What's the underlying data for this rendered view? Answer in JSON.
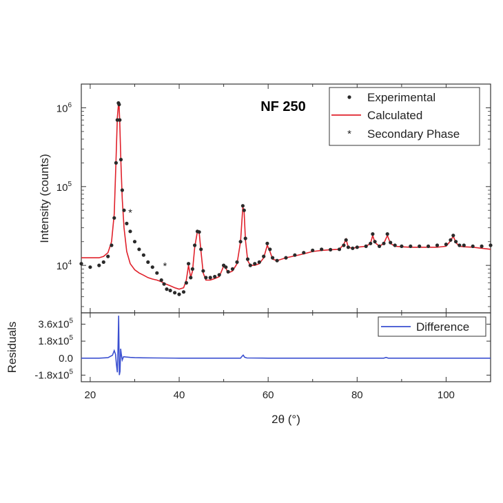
{
  "chart_data": [
    {
      "type": "scatter",
      "title": "",
      "annotation": "NF 250",
      "xlabel": "",
      "ylabel": "Intensity (counts)",
      "xlim": [
        18,
        110
      ],
      "ylim": [
        2500,
        2000000
      ],
      "yscale": "log",
      "y_ticks": [
        {
          "value": 10000,
          "base": "10",
          "exp": "4"
        },
        {
          "value": 100000,
          "base": "10",
          "exp": "5"
        },
        {
          "value": 1000000,
          "base": "10",
          "exp": "6"
        }
      ],
      "legend": {
        "placement": "top-right",
        "entries": [
          "Experimental",
          "Calculated",
          "Secondary Phase"
        ]
      },
      "secondary_phase_markers": [
        {
          "x": 29.0,
          "y": 47000
        },
        {
          "x": 36.8,
          "y": 9800
        }
      ],
      "series": [
        {
          "name": "Experimental",
          "style": "points",
          "color": "#2a2a2a",
          "x": [
            18,
            20,
            22,
            23,
            24,
            24.8,
            25.4,
            25.8,
            26.1,
            26.35,
            26.5,
            26.65,
            26.9,
            27.2,
            27.6,
            28.2,
            29,
            30,
            31,
            32,
            33,
            34,
            35,
            36,
            36.6,
            37.2,
            38,
            39,
            40,
            41,
            41.6,
            42.1,
            42.6,
            43,
            43.5,
            44.1,
            44.5,
            44.9,
            45.4,
            46,
            47,
            48,
            49,
            50,
            50.5,
            51,
            52,
            53,
            53.8,
            54.3,
            54.6,
            54.9,
            55.4,
            56,
            57,
            58,
            59,
            59.8,
            60.4,
            61,
            62,
            64,
            66,
            68,
            70,
            72,
            74,
            76,
            77,
            77.5,
            78,
            79,
            80,
            82,
            83,
            83.5,
            84,
            85,
            86,
            86.8,
            87.5,
            88.5,
            90,
            92,
            94,
            96,
            98,
            100,
            101,
            101.6,
            102.2,
            103,
            104,
            106,
            108,
            110
          ],
          "y": [
            10500,
            9500,
            10000,
            11000,
            13000,
            18000,
            40000,
            200000,
            700000,
            1150000,
            1100000,
            700000,
            220000,
            90000,
            50000,
            34000,
            27000,
            20000,
            16000,
            13500,
            11000,
            9500,
            8000,
            6500,
            5800,
            5000,
            4800,
            4500,
            4300,
            4600,
            6000,
            10500,
            7000,
            9000,
            18000,
            27000,
            26500,
            16000,
            8500,
            7000,
            7000,
            7200,
            7600,
            10000,
            9500,
            8300,
            9000,
            11000,
            20000,
            57000,
            50000,
            22000,
            12000,
            10000,
            10500,
            11000,
            13000,
            19000,
            16000,
            12500,
            11500,
            12500,
            13500,
            14500,
            15500,
            16000,
            15800,
            16000,
            18000,
            21000,
            17000,
            16500,
            17000,
            17500,
            19000,
            25000,
            20000,
            17500,
            19000,
            25000,
            19500,
            18000,
            17500,
            17500,
            17500,
            17500,
            18000,
            18500,
            21000,
            24000,
            20000,
            18000,
            18000,
            17500,
            17500,
            18000
          ]
        },
        {
          "name": "Calculated",
          "style": "line",
          "color": "#e0202a",
          "x": [
            18,
            20,
            22,
            23,
            24,
            24.8,
            25.4,
            25.8,
            26.1,
            26.35,
            26.5,
            26.65,
            26.9,
            27.2,
            27.6,
            28.2,
            29,
            30,
            31,
            32,
            33,
            34,
            35,
            36,
            37,
            38,
            39,
            40,
            41,
            41.6,
            42.1,
            42.6,
            43,
            43.5,
            44.1,
            44.5,
            44.9,
            45.4,
            46,
            47,
            48,
            49,
            50,
            50.5,
            51,
            52,
            53,
            53.8,
            54.3,
            54.6,
            54.9,
            55.4,
            56,
            57,
            58,
            59,
            59.8,
            60.4,
            61,
            62,
            64,
            66,
            68,
            70,
            72,
            74,
            76,
            77,
            77.5,
            78,
            79,
            80,
            82,
            83,
            83.5,
            84,
            85,
            86,
            86.8,
            87.5,
            88.5,
            90,
            92,
            94,
            96,
            98,
            100,
            101,
            101.6,
            102.2,
            103,
            104,
            106,
            108,
            110
          ],
          "y": [
            12500,
            12500,
            12500,
            13000,
            14500,
            20000,
            45000,
            220000,
            750000,
            1100000,
            1050000,
            650000,
            200000,
            70000,
            30000,
            15000,
            10500,
            8800,
            8000,
            7500,
            7000,
            6700,
            6500,
            6200,
            5800,
            5500,
            5200,
            5000,
            5200,
            6500,
            10000,
            7000,
            8500,
            17000,
            27000,
            26000,
            15000,
            8000,
            6500,
            6500,
            6800,
            7200,
            9800,
            9200,
            8000,
            8500,
            10500,
            20000,
            55000,
            48000,
            21000,
            11500,
            10000,
            10000,
            10500,
            12500,
            18000,
            15000,
            12000,
            11500,
            12500,
            13200,
            14000,
            15000,
            15500,
            15800,
            16000,
            18500,
            21500,
            17000,
            16500,
            17000,
            17500,
            19000,
            24000,
            19500,
            17500,
            19000,
            24000,
            19000,
            17500,
            17200,
            17000,
            17000,
            17000,
            17000,
            17500,
            20500,
            23500,
            19500,
            17500,
            17200,
            17000,
            16500,
            16000
          ]
        }
      ]
    },
    {
      "type": "line",
      "title": "",
      "xlabel": "2θ (°)",
      "ylabel": "Residuals",
      "xlim": [
        18,
        110
      ],
      "ylim": [
        -250000,
        480000
      ],
      "x_ticks": [
        "20",
        "40",
        "60",
        "80",
        "100"
      ],
      "y_ticks": [
        {
          "value": 360000,
          "base": "3.6x10",
          "exp": "5"
        },
        {
          "value": 180000,
          "base": "1.8x10",
          "exp": "5"
        },
        {
          "value": 0,
          "base": "0.0",
          "exp": ""
        },
        {
          "value": -180000,
          "base": "-1.8x10",
          "exp": "5"
        }
      ],
      "legend": {
        "placement": "top-right",
        "entries": [
          "Difference"
        ]
      },
      "series": [
        {
          "name": "Difference",
          "color": "#3a4fd0",
          "x": [
            18,
            22,
            24,
            25,
            25.4,
            25.7,
            25.9,
            26.1,
            26.25,
            26.4,
            26.55,
            26.7,
            26.85,
            27.0,
            27.2,
            27.5,
            28,
            29,
            30,
            32,
            35,
            40,
            45,
            50,
            53.8,
            54.1,
            54.4,
            54.7,
            55.2,
            60,
            70,
            80,
            86,
            86.5,
            87,
            90,
            100,
            110
          ],
          "y": [
            0,
            0,
            5000,
            30000,
            80000,
            40000,
            -70000,
            -150000,
            120000,
            450000,
            -180000,
            -140000,
            100000,
            40000,
            -20000,
            15000,
            12000,
            8000,
            5000,
            3000,
            2000,
            0,
            0,
            0,
            0,
            18000,
            32000,
            10000,
            2000,
            0,
            0,
            0,
            0,
            8000,
            0,
            0,
            0,
            0
          ]
        }
      ]
    }
  ]
}
